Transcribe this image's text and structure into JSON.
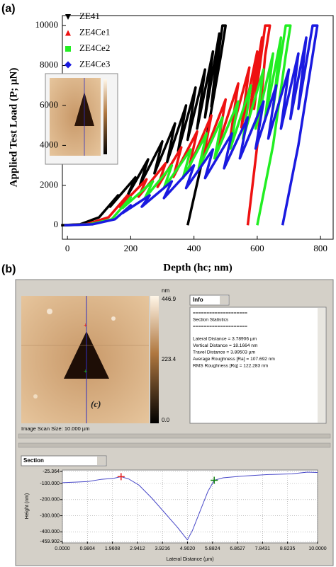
{
  "panel_labels": [
    "(a)",
    "(b)"
  ],
  "chart_data": [
    {
      "type": "line",
      "xlabel": "Depth (hc; nm)",
      "ylabel": "Applied Test Load (P; µN)",
      "xlim": [
        -16,
        840
      ],
      "ylim": [
        -700,
        10500
      ],
      "xticks": [
        0,
        200,
        400,
        600,
        800
      ],
      "yticks": [
        0,
        2000,
        4000,
        6000,
        8000,
        10000
      ],
      "grid": false,
      "legend": "upper left",
      "series": [
        {
          "name": "ZE41",
          "color": "#000000",
          "marker": "triangle-down",
          "x": [
            -20,
            40,
            100,
            160,
            135,
            215,
            190,
            255,
            230,
            300,
            275,
            340,
            315,
            375,
            350,
            405,
            380,
            435,
            410,
            460,
            435,
            480,
            455,
            490,
            500,
            485,
            430,
            380
          ],
          "values": [
            0,
            50,
            400,
            1500,
            930,
            2400,
            1490,
            3300,
            2050,
            4200,
            2600,
            5100,
            3160,
            6000,
            3720,
            6900,
            4280,
            7800,
            4840,
            8700,
            5400,
            9600,
            5950,
            10000,
            10000,
            8500,
            3500,
            0
          ]
        },
        {
          "name": "ZE4Ce1",
          "color": "#ee1111",
          "marker": "triangle-up",
          "x": [
            -10,
            60,
            130,
            190,
            165,
            250,
            225,
            310,
            285,
            360,
            335,
            410,
            385,
            455,
            430,
            500,
            475,
            540,
            515,
            575,
            550,
            600,
            575,
            615,
            590,
            625,
            640,
            625,
            600,
            570
          ],
          "values": [
            0,
            50,
            400,
            1500,
            930,
            2300,
            1430,
            3100,
            1920,
            3900,
            2420,
            4700,
            2910,
            5500,
            3410,
            6300,
            3910,
            7100,
            4400,
            7900,
            4900,
            8700,
            5390,
            9400,
            5830,
            10000,
            10000,
            8500,
            4000,
            0
          ]
        },
        {
          "name": "ZE4Ce2",
          "color": "#22ee22",
          "marker": "square",
          "x": [
            -10,
            70,
            140,
            200,
            175,
            270,
            245,
            330,
            305,
            390,
            365,
            440,
            415,
            490,
            465,
            540,
            515,
            580,
            555,
            620,
            595,
            650,
            625,
            675,
            650,
            690,
            705,
            690,
            650,
            600
          ],
          "values": [
            0,
            50,
            300,
            1400,
            870,
            2200,
            1360,
            3000,
            1860,
            3800,
            2360,
            4600,
            2850,
            5400,
            3350,
            6200,
            3840,
            7000,
            4340,
            7800,
            4840,
            8600,
            5330,
            9400,
            5830,
            10000,
            10000,
            8500,
            4000,
            0
          ]
        },
        {
          "name": "ZE4Ce3",
          "color": "#1a1ae0",
          "marker": "diamond",
          "x": [
            -10,
            80,
            150,
            200,
            175,
            260,
            235,
            330,
            305,
            400,
            375,
            460,
            435,
            520,
            495,
            570,
            545,
            620,
            595,
            660,
            635,
            700,
            675,
            730,
            705,
            755,
            730,
            775,
            790,
            775,
            730,
            680
          ],
          "values": [
            0,
            50,
            300,
            1000,
            620,
            1500,
            930,
            2200,
            1360,
            3000,
            1860,
            3800,
            2360,
            4600,
            2850,
            5400,
            3350,
            6200,
            3840,
            7000,
            4340,
            7800,
            4840,
            8600,
            5330,
            9400,
            5830,
            10000,
            10000,
            8500,
            4000,
            0
          ]
        }
      ]
    },
    {
      "type": "line",
      "xlabel": "Lateral Distance (µm)",
      "ylabel": "Height (nm)",
      "xlim": [
        0,
        10
      ],
      "ylim": [
        -459.902,
        -25.364
      ],
      "grid": true,
      "xticks": [
        {
          "value": 0,
          "label": "0.0000"
        },
        0.9804,
        1.9608,
        2.9412,
        3.9216,
        {
          "value": 4.902,
          "label": "4.9020"
        },
        5.8824,
        6.8627,
        7.8431,
        8.8235,
        {
          "value": 10,
          "label": "10.0000"
        }
      ],
      "yticks": [
        -25.364,
        {
          "value": -100,
          "label": "-100.000"
        },
        {
          "value": -200,
          "label": "-200.000"
        },
        {
          "value": -300,
          "label": "-300.000"
        },
        {
          "value": -400,
          "label": "-400.000"
        },
        -459.902
      ],
      "series": [
        {
          "color": "#4848c8",
          "x": [
            0,
            0.5,
            1.0,
            1.5,
            2.0,
            2.3,
            2.6,
            3.0,
            3.5,
            4.0,
            4.5,
            4.9,
            5.1,
            5.4,
            5.7,
            5.95,
            6.3,
            7.0,
            8.0,
            9.0,
            9.6,
            10.0
          ],
          "values": [
            -95,
            -92,
            -88,
            -75,
            -68,
            -58,
            -72,
            -110,
            -190,
            -280,
            -370,
            -450,
            -390,
            -270,
            -150,
            -80,
            -65,
            -55,
            -45,
            -40,
            -30,
            -32
          ]
        }
      ],
      "cursors": [
        {
          "color": "#e02020",
          "x": 2.3,
          "y": -58
        },
        {
          "color": "#108010",
          "x": 5.95,
          "y": -80
        }
      ]
    }
  ],
  "afm": {
    "colorbar_unit": "nm",
    "colorbar_labels": [
      446.9,
      223.4,
      {
        "value": 0,
        "label": "0.0"
      }
    ],
    "image_label": "(c)",
    "scan_size": "Image Scan Size: 10.000 µm",
    "info_dropdown": "Info",
    "info_lines": [
      "====================",
      "Section Statistics",
      "====================",
      "Lateral Distance = 3.78906 µm",
      "Vertical Distance = 18.1664 nm",
      "Travel Distance = 3.89503 µm",
      "Average Roughness [Ra] = 107.692 nm",
      "RMS Roughness [Rq] = 122.283 nm"
    ],
    "section_dropdown": "Section"
  }
}
